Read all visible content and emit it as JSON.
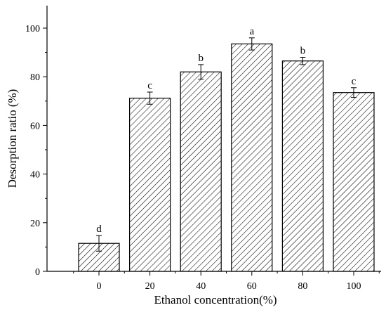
{
  "chart_data": {
    "type": "bar",
    "categories": [
      "0",
      "20",
      "40",
      "60",
      "80",
      "100"
    ],
    "values": [
      11.5,
      71.2,
      82.0,
      93.5,
      86.5,
      73.5
    ],
    "errors": [
      3.2,
      2.5,
      3.0,
      2.5,
      1.5,
      2.0
    ],
    "significance": [
      "d",
      "c",
      "b",
      "a",
      "b",
      "c"
    ],
    "xlabel": "Ethanol concentration(%)",
    "ylabel": "Desorption ratio (%)",
    "ylim": [
      0,
      100
    ],
    "yticks": [
      0,
      20,
      40,
      60,
      80,
      100
    ],
    "pattern": "diagonal-hatch",
    "bar_fill": "#ffffff",
    "bar_stroke": "#000000"
  }
}
